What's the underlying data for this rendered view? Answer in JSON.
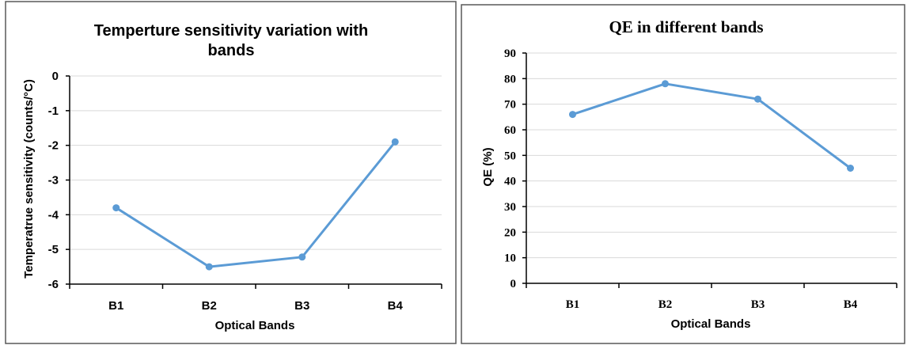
{
  "colors": {
    "series": "#5b9bd5",
    "frame": "#595959"
  },
  "chart_data": [
    {
      "type": "line",
      "title": "Temperture sensitivity variation with bands",
      "title_lines": [
        "Temperture sensitivity variation with",
        "bands"
      ],
      "xlabel": "Optical Bands",
      "ylabel": "Temperatrue sensitivity (counts/°C)",
      "categories": [
        "B1",
        "B2",
        "B3",
        "B4"
      ],
      "series": [
        {
          "values": [
            -3.8,
            -5.5,
            -5.22,
            -1.9
          ]
        }
      ],
      "ylim": [
        -6,
        0
      ],
      "yticks": [
        0,
        -1,
        -2,
        -3,
        -4,
        -5,
        -6
      ],
      "grid": true,
      "legend": "none"
    },
    {
      "type": "line",
      "title": "QE in different bands",
      "xlabel": "Optical Bands",
      "ylabel": "QE (%)",
      "categories": [
        "B1",
        "B2",
        "B3",
        "B4"
      ],
      "series": [
        {
          "values": [
            66,
            78,
            72,
            45
          ]
        }
      ],
      "ylim": [
        0,
        90
      ],
      "yticks": [
        0,
        10,
        20,
        30,
        40,
        50,
        60,
        70,
        80,
        90
      ],
      "grid": true,
      "legend": "none"
    }
  ]
}
